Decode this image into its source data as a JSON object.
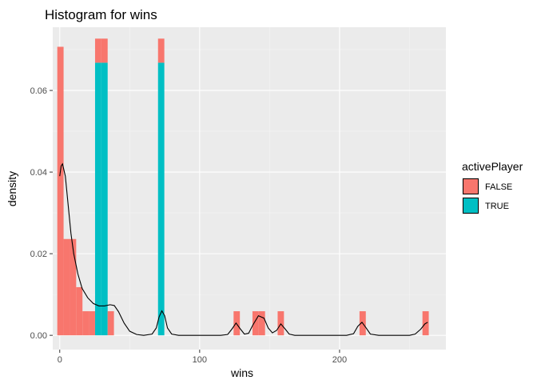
{
  "chart_data": {
    "type": "bar",
    "title": "Histogram for wins",
    "xlabel": "wins",
    "ylabel": "density",
    "xlim": [
      -5,
      276
    ],
    "ylim": [
      -0.0035,
      0.0755
    ],
    "x_ticks": [
      0,
      100,
      200
    ],
    "x_tick_labels": [
      "0",
      "100",
      "200"
    ],
    "y_ticks": [
      0.0,
      0.02,
      0.04,
      0.06
    ],
    "y_tick_labels": [
      "0.00",
      "0.02",
      "0.04",
      "0.06"
    ],
    "bin_width": 4.5,
    "grid": true,
    "legend_position": "right",
    "legend": {
      "title": "activePlayer",
      "entries": [
        {
          "label": "FALSE",
          "color": "#F8766D"
        },
        {
          "label": "TRUE",
          "color": "#00BFC4"
        }
      ]
    },
    "series": [
      {
        "name": "FALSE",
        "color": "#F8766D",
        "bars": [
          {
            "x": 0.5,
            "value": 0.0707
          },
          {
            "x": 5,
            "value": 0.0236
          },
          {
            "x": 9.5,
            "value": 0.0236
          },
          {
            "x": 14,
            "value": 0.0118
          },
          {
            "x": 18.5,
            "value": 0.0059
          },
          {
            "x": 23,
            "value": 0.0059
          },
          {
            "x": 27.5,
            "value": 0.0059
          },
          {
            "x": 32,
            "value": 0.0059
          },
          {
            "x": 36.5,
            "value": 0.0059
          },
          {
            "x": 72.5,
            "value": 0.0059
          },
          {
            "x": 126.5,
            "value": 0.0059
          },
          {
            "x": 140,
            "value": 0.0059
          },
          {
            "x": 144.5,
            "value": 0.0059
          },
          {
            "x": 158,
            "value": 0.0059
          },
          {
            "x": 216.5,
            "value": 0.0059
          },
          {
            "x": 261.5,
            "value": 0.0059
          }
        ]
      },
      {
        "name": "TRUE",
        "color": "#00BFC4",
        "bars": [
          {
            "x": 27.5,
            "value": 0.0668
          },
          {
            "x": 32,
            "value": 0.0668
          },
          {
            "x": 72.5,
            "value": 0.0668
          }
        ]
      }
    ],
    "density_curve": {
      "color": "#000000",
      "points": [
        [
          0,
          0.039
        ],
        [
          1,
          0.0415
        ],
        [
          2,
          0.042
        ],
        [
          4,
          0.039
        ],
        [
          6,
          0.032
        ],
        [
          8,
          0.025
        ],
        [
          10,
          0.02
        ],
        [
          13,
          0.015
        ],
        [
          16,
          0.0115
        ],
        [
          20,
          0.0092
        ],
        [
          24,
          0.0078
        ],
        [
          28,
          0.0072
        ],
        [
          32,
          0.0072
        ],
        [
          36,
          0.0075
        ],
        [
          39,
          0.0073
        ],
        [
          42,
          0.0058
        ],
        [
          46,
          0.003
        ],
        [
          50,
          0.001
        ],
        [
          55,
          0.0002
        ],
        [
          60,
          0.0
        ],
        [
          66,
          0.0003
        ],
        [
          69,
          0.0018
        ],
        [
          71,
          0.0045
        ],
        [
          73,
          0.006
        ],
        [
          75,
          0.0048
        ],
        [
          77,
          0.0018
        ],
        [
          80,
          0.0003
        ],
        [
          85,
          0.0
        ],
        [
          115,
          0.0
        ],
        [
          120,
          0.0002
        ],
        [
          123,
          0.0015
        ],
        [
          126,
          0.003
        ],
        [
          129,
          0.0016
        ],
        [
          132,
          0.0003
        ],
        [
          135,
          0.0005
        ],
        [
          138,
          0.0025
        ],
        [
          142,
          0.0048
        ],
        [
          146,
          0.0042
        ],
        [
          149,
          0.0018
        ],
        [
          152,
          0.0006
        ],
        [
          155,
          0.0012
        ],
        [
          158,
          0.0028
        ],
        [
          161,
          0.0016
        ],
        [
          164,
          0.0003
        ],
        [
          168,
          0.0
        ],
        [
          205,
          0.0
        ],
        [
          210,
          0.0004
        ],
        [
          213,
          0.0022
        ],
        [
          216,
          0.0032
        ],
        [
          219,
          0.0018
        ],
        [
          222,
          0.0003
        ],
        [
          228,
          0.0
        ],
        [
          250,
          0.0
        ],
        [
          254,
          0.0003
        ],
        [
          258,
          0.0015
        ],
        [
          261,
          0.0028
        ],
        [
          263,
          0.0032
        ]
      ]
    }
  }
}
